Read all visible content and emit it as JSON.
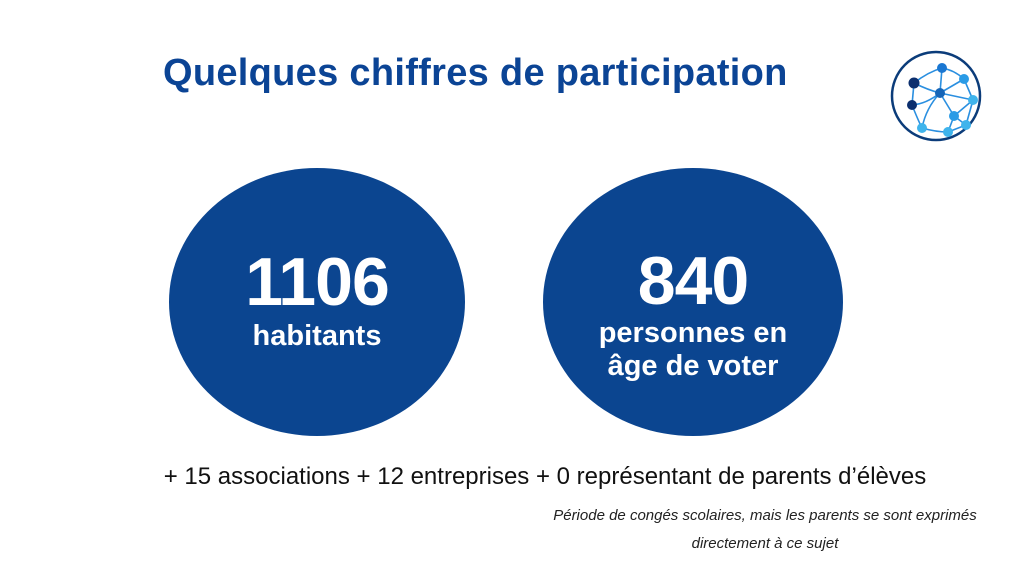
{
  "title": "Quelques chiffres de participation",
  "logo": {
    "icon": "network-globe-icon",
    "colors": {
      "ring": "#0b3c7a",
      "dark": "#0c2f6e",
      "mid": "#1a77d2",
      "light": "#3fb4ec"
    }
  },
  "stats": [
    {
      "value": "1106",
      "label": "habitants"
    },
    {
      "value": "840",
      "label_line1": "personnes en",
      "label_line2": "âge de voter"
    }
  ],
  "extras": "+ 15 associations + 12 entreprises + 0 représentant de parents d’élèves",
  "note": {
    "line1": "Période de congés scolaires, mais les parents se sont exprimés",
    "line2": "directement à ce sujet"
  },
  "colors": {
    "brand": "#0b4590",
    "title": "#0b4495"
  }
}
